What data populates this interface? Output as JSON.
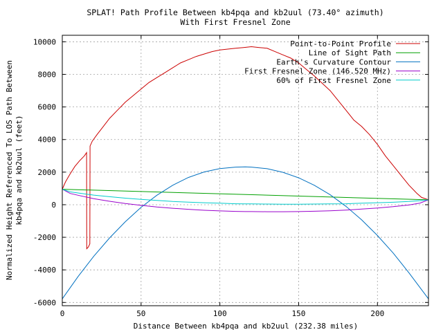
{
  "chart_data": {
    "type": "line",
    "title": "SPLAT! Path Profile Between kb4pqa and kb2uul (73.40° azimuth)",
    "subtitle": "With First Fresnel Zone",
    "xlabel": "Distance Between kb4pqa and kb2uul (232.38 miles)",
    "ylabel": "Normalized Height Referenced To LOS Path Between",
    "ylabel2": "kb4pqa and kb2uul (feet)",
    "xlim": [
      0,
      232.38
    ],
    "ylim": [
      -6200,
      10400
    ],
    "x_ticks": [
      0,
      50,
      100,
      150,
      200
    ],
    "y_ticks": [
      -6000,
      -4000,
      -2000,
      0,
      2000,
      4000,
      6000,
      8000,
      10000
    ],
    "grid": true,
    "legend_position": "top-right",
    "series": [
      {
        "name": "Point-to-Point Profile",
        "color": "#cc0000",
        "x": [
          0,
          2,
          5,
          8,
          11,
          14,
          15.4,
          15.5,
          16.5,
          17.5,
          17.6,
          19,
          22,
          26,
          30,
          35,
          40,
          45,
          50,
          55,
          60,
          65,
          70,
          75,
          80,
          85,
          90,
          95,
          100,
          105,
          110,
          115,
          120,
          125,
          130,
          135,
          140,
          145,
          150,
          155,
          160,
          165,
          170,
          175,
          180,
          185,
          190,
          195,
          200,
          205,
          210,
          215,
          220,
          225,
          228,
          232.38
        ],
        "y": [
          950,
          1400,
          1900,
          2350,
          2700,
          3000,
          3200,
          -2700,
          -2600,
          -2400,
          3600,
          3900,
          4300,
          4800,
          5300,
          5800,
          6300,
          6700,
          7100,
          7500,
          7800,
          8100,
          8400,
          8700,
          8900,
          9100,
          9250,
          9400,
          9500,
          9550,
          9600,
          9650,
          9700,
          9650,
          9600,
          9400,
          9200,
          9000,
          8700,
          8300,
          7900,
          7450,
          7000,
          6400,
          5800,
          5200,
          4800,
          4300,
          3700,
          3000,
          2400,
          1800,
          1200,
          700,
          450,
          300
        ]
      },
      {
        "name": "Line of Sight Path",
        "color": "#00a000",
        "x": [
          0,
          232.38
        ],
        "y": [
          950,
          300
        ]
      },
      {
        "name": "Earth's Curvature Contour",
        "color": "#0070c0",
        "x": [
          0,
          10,
          20,
          30,
          40,
          50,
          60,
          70,
          80,
          90,
          100,
          110,
          116.19,
          120,
          130,
          140,
          150,
          160,
          170,
          180,
          190,
          200,
          210,
          220,
          232.38
        ],
        "y": [
          -5780,
          -4410,
          -3160,
          -2040,
          -1040,
          -160,
          580,
          1190,
          1670,
          2010,
          2220,
          2310,
          2320,
          2310,
          2210,
          1990,
          1650,
          1190,
          610,
          -100,
          -930,
          -1890,
          -2970,
          -4180,
          -5780
        ]
      },
      {
        "name": "First Fresnel Zone (146.520 MHz)",
        "color": "#9900cc",
        "x": [
          0,
          5,
          10,
          20,
          30,
          40,
          50,
          60,
          70,
          80,
          90,
          100,
          110,
          116.19,
          120,
          130,
          140,
          150,
          160,
          170,
          180,
          190,
          200,
          210,
          220,
          227,
          232.38
        ],
        "y": [
          950,
          690,
          580,
          370,
          210,
          70,
          -40,
          -140,
          -220,
          -280,
          -340,
          -380,
          -410,
          -420,
          -420,
          -430,
          -430,
          -420,
          -400,
          -370,
          -330,
          -270,
          -200,
          -120,
          -20,
          100,
          300
        ]
      },
      {
        "name": "60% of First Fresnel Zone",
        "color": "#00cccc",
        "x": [
          0,
          5,
          10,
          20,
          30,
          40,
          50,
          60,
          70,
          80,
          90,
          100,
          110,
          116.19,
          120,
          130,
          140,
          150,
          160,
          170,
          180,
          190,
          200,
          210,
          220,
          227,
          232.38
        ],
        "y": [
          950,
          790,
          720,
          590,
          490,
          400,
          330,
          260,
          200,
          160,
          120,
          90,
          60,
          50,
          50,
          40,
          30,
          30,
          40,
          50,
          60,
          90,
          120,
          150,
          200,
          250,
          300
        ]
      }
    ]
  }
}
